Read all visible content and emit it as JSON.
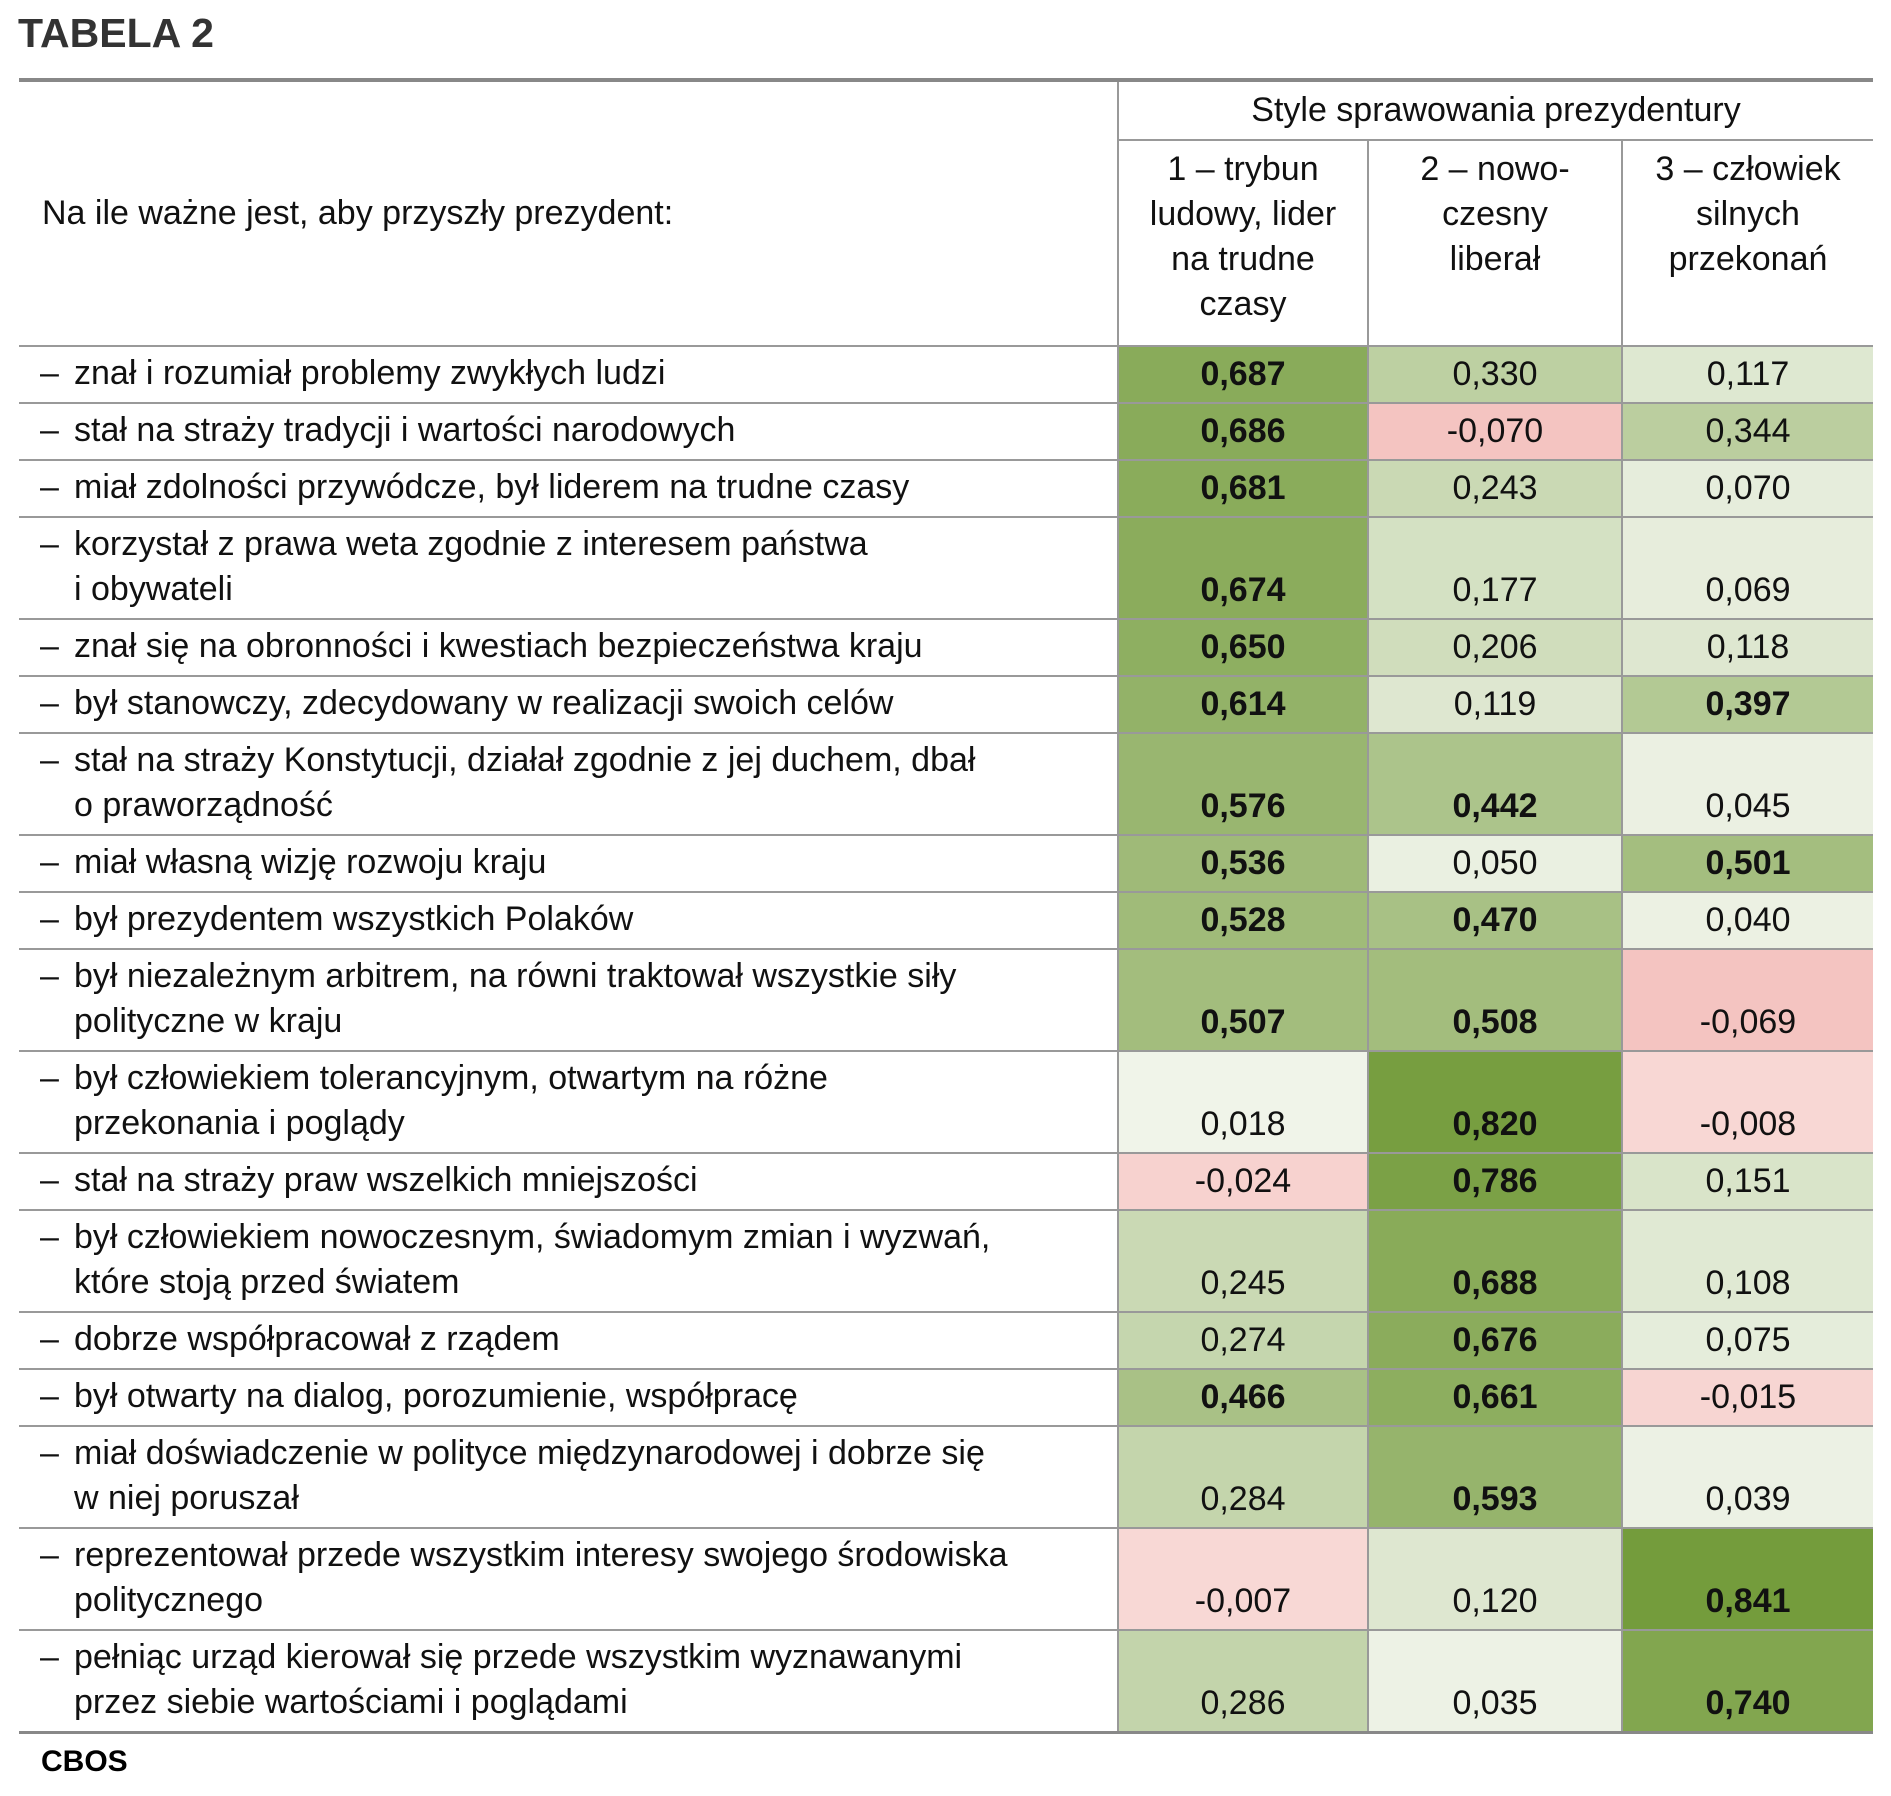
{
  "title": "TABELA 2",
  "header": {
    "row_label": "Na ile ważne jest, aby przyszły prezydent:",
    "group_label": "Style sprawowania prezydentury",
    "columns": [
      "1 – trybun ludowy, lider na trudne czasy",
      "2 – nowo-czesny liberał",
      "3 – człowiek silnych przekonań"
    ],
    "column_lines": [
      [
        "1 – trybun",
        "ludowy, lider",
        "na trudne",
        "czasy"
      ],
      [
        "2 – nowo-",
        "czesny",
        "liberał"
      ],
      [
        "3 – człowiek",
        "silnych",
        "przekonań"
      ]
    ]
  },
  "colors": {
    "rule": "#888888",
    "grid": "#999999",
    "max_green": "#749c3c",
    "zero": "#f4f7ef",
    "negative": "#f4c4c1"
  },
  "rows": [
    {
      "dash": "–",
      "lines": [
        "znał i rozumiał problemy zwykłych ludzi"
      ],
      "values": [
        "0,687",
        "0,330",
        "0,117"
      ],
      "numeric": [
        0.687,
        0.33,
        0.117
      ],
      "bold": [
        true,
        false,
        false
      ]
    },
    {
      "dash": "–",
      "lines": [
        "stał na straży tradycji i wartości narodowych"
      ],
      "values": [
        "0,686",
        "-0,070",
        "0,344"
      ],
      "numeric": [
        0.686,
        -0.07,
        0.344
      ],
      "bold": [
        true,
        false,
        false
      ]
    },
    {
      "dash": "–",
      "lines": [
        "miał zdolności przywódcze, był liderem na trudne czasy"
      ],
      "values": [
        "0,681",
        "0,243",
        "0,070"
      ],
      "numeric": [
        0.681,
        0.243,
        0.07
      ],
      "bold": [
        true,
        false,
        false
      ]
    },
    {
      "dash": "–",
      "lines": [
        "korzystał z prawa weta zgodnie z interesem państwa",
        "i obywateli"
      ],
      "values": [
        "0,674",
        "0,177",
        "0,069"
      ],
      "numeric": [
        0.674,
        0.177,
        0.069
      ],
      "bold": [
        true,
        false,
        false
      ]
    },
    {
      "dash": "–",
      "lines": [
        "znał się na obronności i kwestiach bezpieczeństwa kraju"
      ],
      "values": [
        "0,650",
        "0,206",
        "0,118"
      ],
      "numeric": [
        0.65,
        0.206,
        0.118
      ],
      "bold": [
        true,
        false,
        false
      ]
    },
    {
      "dash": "–",
      "lines": [
        "był stanowczy, zdecydowany w realizacji swoich celów"
      ],
      "values": [
        "0,614",
        "0,119",
        "0,397"
      ],
      "numeric": [
        0.614,
        0.119,
        0.397
      ],
      "bold": [
        true,
        false,
        true
      ]
    },
    {
      "dash": "–",
      "lines": [
        "stał na straży Konstytucji, działał zgodnie z jej duchem, dbał",
        "o praworządność"
      ],
      "values": [
        "0,576",
        "0,442",
        "0,045"
      ],
      "numeric": [
        0.576,
        0.442,
        0.045
      ],
      "bold": [
        true,
        true,
        false
      ]
    },
    {
      "dash": "–",
      "lines": [
        "miał własną wizję rozwoju kraju"
      ],
      "values": [
        "0,536",
        "0,050",
        "0,501"
      ],
      "numeric": [
        0.536,
        0.05,
        0.501
      ],
      "bold": [
        true,
        false,
        true
      ]
    },
    {
      "dash": "–",
      "lines": [
        "był prezydentem wszystkich Polaków"
      ],
      "values": [
        "0,528",
        "0,470",
        "0,040"
      ],
      "numeric": [
        0.528,
        0.47,
        0.04
      ],
      "bold": [
        true,
        true,
        false
      ]
    },
    {
      "dash": "–",
      "lines": [
        "był niezależnym arbitrem, na równi traktował wszystkie siły",
        "polityczne w kraju"
      ],
      "values": [
        "0,507",
        "0,508",
        "-0,069"
      ],
      "numeric": [
        0.507,
        0.508,
        -0.069
      ],
      "bold": [
        true,
        true,
        false
      ]
    },
    {
      "dash": "–",
      "lines": [
        "był człowiekiem tolerancyjnym, otwartym na różne",
        "przekonania i poglądy"
      ],
      "values": [
        "0,018",
        "0,820",
        "-0,008"
      ],
      "numeric": [
        0.018,
        0.82,
        -0.008
      ],
      "bold": [
        false,
        true,
        false
      ]
    },
    {
      "dash": "–",
      "lines": [
        "stał na straży praw wszelkich mniejszości"
      ],
      "values": [
        "-0,024",
        "0,786",
        "0,151"
      ],
      "numeric": [
        -0.024,
        0.786,
        0.151
      ],
      "bold": [
        false,
        true,
        false
      ]
    },
    {
      "dash": "–",
      "lines": [
        "był człowiekiem nowoczesnym, świadomym zmian i wyzwań,",
        "które stoją przed światem"
      ],
      "values": [
        "0,245",
        "0,688",
        "0,108"
      ],
      "numeric": [
        0.245,
        0.688,
        0.108
      ],
      "bold": [
        false,
        true,
        false
      ]
    },
    {
      "dash": "–",
      "lines": [
        "dobrze współpracował z rządem"
      ],
      "values": [
        "0,274",
        "0,676",
        "0,075"
      ],
      "numeric": [
        0.274,
        0.676,
        0.075
      ],
      "bold": [
        false,
        true,
        false
      ]
    },
    {
      "dash": "–",
      "lines": [
        "był otwarty na dialog, porozumienie, współpracę"
      ],
      "values": [
        "0,466",
        "0,661",
        "-0,015"
      ],
      "numeric": [
        0.466,
        0.661,
        -0.015
      ],
      "bold": [
        true,
        true,
        false
      ]
    },
    {
      "dash": "–",
      "lines": [
        "miał doświadczenie w polityce międzynarodowej i dobrze się",
        "w niej poruszał"
      ],
      "values": [
        "0,284",
        "0,593",
        "0,039"
      ],
      "numeric": [
        0.284,
        0.593,
        0.039
      ],
      "bold": [
        false,
        true,
        false
      ]
    },
    {
      "dash": "–",
      "lines": [
        "reprezentował przede wszystkim interesy swojego środowiska",
        "politycznego"
      ],
      "values": [
        "-0,007",
        "0,120",
        "0,841"
      ],
      "numeric": [
        -0.007,
        0.12,
        0.841
      ],
      "bold": [
        false,
        false,
        true
      ]
    },
    {
      "dash": "–",
      "lines": [
        "pełniąc urząd kierował się przede wszystkim wyznawanymi",
        "przez siebie wartościami i poglądami"
      ],
      "values": [
        "0,286",
        "0,035",
        "0,740"
      ],
      "numeric": [
        0.286,
        0.035,
        0.74
      ],
      "bold": [
        false,
        false,
        true
      ]
    }
  ],
  "footer": "CBOS"
}
